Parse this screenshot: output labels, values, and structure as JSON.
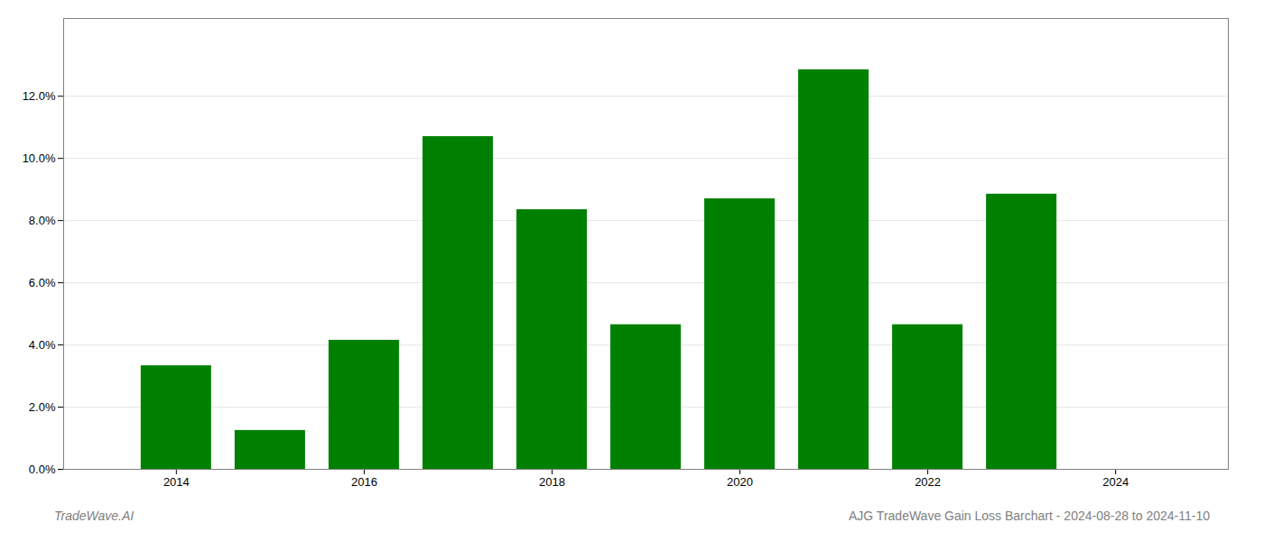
{
  "chart_data": {
    "type": "bar",
    "x": [
      2014,
      2015,
      2016,
      2017,
      2018,
      2019,
      2020,
      2021,
      2022,
      2023
    ],
    "values": [
      0.0333,
      0.0125,
      0.0415,
      0.107,
      0.0835,
      0.0465,
      0.087,
      0.1285,
      0.0465,
      0.0885
    ],
    "color": "#008000",
    "xlim": [
      2012.8,
      2025.2
    ],
    "xticks": [
      2014,
      2016,
      2018,
      2020,
      2022,
      2024
    ],
    "ylim": [
      0,
      0.145
    ],
    "yticks": [
      {
        "value": 0.0,
        "label": "0.0%"
      },
      {
        "value": 0.02,
        "label": "2.0%"
      },
      {
        "value": 0.04,
        "label": "4.0%"
      },
      {
        "value": 0.06,
        "label": "6.0%"
      },
      {
        "value": 0.08,
        "label": "8.0%"
      },
      {
        "value": 0.1,
        "label": "10.0%"
      },
      {
        "value": 0.12,
        "label": "12.0%"
      }
    ],
    "grid": true,
    "annotations": [
      "TradeWave.AI",
      "AJG TradeWave Gain Loss Barchart - 2024-08-28 to 2024-11-10"
    ]
  }
}
